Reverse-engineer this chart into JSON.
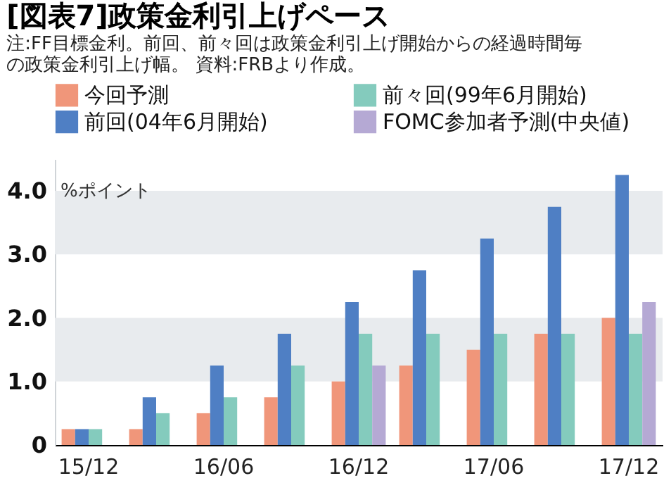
{
  "chart_data": {
    "type": "bar",
    "title": "[図表7]政策金利引上げペース",
    "annotations": [
      "注:FF目標金利。前回、前々回は政策金利引上げ開始からの経過時間毎の政策金利引上げ幅。",
      "資料:FRBより作成。"
    ],
    "ylabel": "%ポイント",
    "categories": [
      "15/12",
      null,
      "16/06",
      null,
      "16/12",
      null,
      "17/06",
      null,
      "17/12"
    ],
    "series": [
      {
        "name": "今回予測",
        "color": "#f0967a",
        "values": [
          0.25,
          0.25,
          0.5,
          0.75,
          1.0,
          1.25,
          1.5,
          1.75,
          2.0
        ]
      },
      {
        "name": "前回(04年6月開始)",
        "color": "#4f7fc4",
        "values": [
          0.25,
          0.75,
          1.25,
          1.75,
          2.25,
          2.75,
          3.25,
          3.75,
          4.25
        ]
      },
      {
        "name": "前々回(99年6月開始)",
        "color": "#84cbbd",
        "values": [
          0.25,
          0.5,
          0.75,
          1.25,
          1.75,
          1.75,
          1.75,
          1.75,
          1.75
        ]
      },
      {
        "name": "FOMC参加者予測(中央値)",
        "color": "#b5a9d4",
        "values": [
          null,
          null,
          null,
          null,
          1.25,
          null,
          null,
          null,
          2.25
        ]
      }
    ],
    "ylim": [
      0,
      4.5
    ],
    "yticks": [
      0,
      {
        "value": 1,
        "label": "1.0"
      },
      {
        "value": 2,
        "label": "2.0"
      },
      {
        "value": 3,
        "label": "3.0"
      },
      {
        "value": 4,
        "label": "4.0"
      }
    ],
    "bands": [
      {
        "axis": "y",
        "from": 1,
        "to": 2,
        "color": "#e8ebee"
      },
      {
        "axis": "y",
        "from": 3,
        "to": 4,
        "color": "#e8ebee"
      }
    ],
    "legend": "top"
  }
}
